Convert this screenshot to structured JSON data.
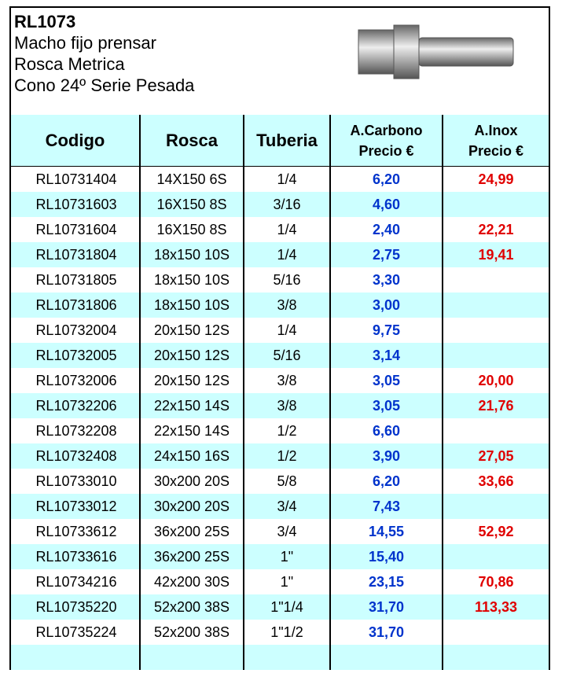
{
  "header": {
    "code": "RL1073",
    "lines": [
      "Macho fijo prensar",
      "Rosca Metrica",
      "Cono 24º Serie Pesada"
    ]
  },
  "table": {
    "columns": [
      [
        "Codigo"
      ],
      [
        "Rosca"
      ],
      [
        "Tuberia"
      ],
      [
        "A.Carbono",
        "Precio €"
      ],
      [
        "A.Inox",
        "Precio €"
      ]
    ],
    "rows": [
      [
        "RL10731404",
        "14X150 6S",
        "1/4",
        "6,20",
        "24,99"
      ],
      [
        "RL10731603",
        "16X150 8S",
        "3/16",
        "4,60",
        null
      ],
      [
        "RL10731604",
        "16X150 8S",
        "1/4",
        "2,40",
        "22,21"
      ],
      [
        "RL10731804",
        "18x150 10S",
        "1/4",
        "2,75",
        "19,41"
      ],
      [
        "RL10731805",
        "18x150 10S",
        "5/16",
        "3,30",
        null
      ],
      [
        "RL10731806",
        "18x150 10S",
        "3/8",
        "3,00",
        null
      ],
      [
        "RL10732004",
        "20x150 12S",
        "1/4",
        "9,75",
        null
      ],
      [
        "RL10732005",
        "20x150 12S",
        "5/16",
        "3,14",
        null
      ],
      [
        "RL10732006",
        "20x150 12S",
        "3/8",
        "3,05",
        "20,00"
      ],
      [
        "RL10732206",
        "22x150 14S",
        "3/8",
        "3,05",
        "21,76"
      ],
      [
        "RL10732208",
        "22x150 14S",
        "1/2",
        "6,60",
        null
      ],
      [
        "RL10732408",
        "24x150 16S",
        "1/2",
        "3,90",
        "27,05"
      ],
      [
        "RL10733010",
        "30x200 20S",
        "5/8",
        "6,20",
        "33,66"
      ],
      [
        "RL10733012",
        "30x200 20S",
        "3/4",
        "7,43",
        null
      ],
      [
        "RL10733612",
        "36x200 25S",
        "3/4",
        "14,55",
        "52,92"
      ],
      [
        "RL10733616",
        "36x200 25S",
        "1\"",
        "15,40",
        null
      ],
      [
        "RL10734216",
        "42x200 30S",
        "1\"",
        "23,15",
        "70,86"
      ],
      [
        "RL10735220",
        "52x200 38S",
        "1\"1/4",
        "31,70",
        "113,33"
      ],
      [
        "RL10735224",
        "52x200 38S",
        "1\"1/2",
        "31,70",
        null
      ]
    ]
  }
}
